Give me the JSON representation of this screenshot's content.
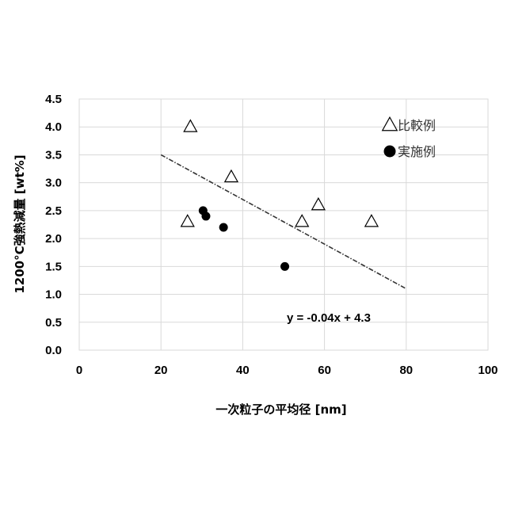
{
  "chart_data": {
    "type": "scatter",
    "xlabel": "一次粒子の平均径 [nm]",
    "ylabel": "1200°C強熱減量 [wt%]",
    "xlim": [
      0,
      100
    ],
    "ylim": [
      0,
      4.5
    ],
    "x_ticks": [
      "0",
      "20",
      "40",
      "60",
      "80",
      "100"
    ],
    "y_ticks": [
      "0.0",
      "0.5",
      "1.0",
      "1.5",
      "2.0",
      "2.5",
      "3.0",
      "3.5",
      "4.0",
      "4.5"
    ],
    "x_tick_values": [
      0,
      20,
      40,
      60,
      80,
      100
    ],
    "y_tick_values": [
      0,
      0.5,
      1.0,
      1.5,
      2.0,
      2.5,
      3.0,
      3.5,
      4.0,
      4.5
    ],
    "grid": true,
    "legend_position": "top-right",
    "series": [
      {
        "name": "比較例",
        "marker": "open-triangle",
        "color": "#000000",
        "points": [
          {
            "x": 26.5,
            "y": 2.3
          },
          {
            "x": 27.2,
            "y": 4.0
          },
          {
            "x": 37.2,
            "y": 3.1
          },
          {
            "x": 54.5,
            "y": 2.3
          },
          {
            "x": 58.5,
            "y": 2.6
          },
          {
            "x": 71.5,
            "y": 2.3
          }
        ]
      },
      {
        "name": "実施例",
        "marker": "filled-circle",
        "color": "#000000",
        "points": [
          {
            "x": 30.3,
            "y": 2.5
          },
          {
            "x": 31.0,
            "y": 2.4
          },
          {
            "x": 35.3,
            "y": 2.2
          },
          {
            "x": 50.3,
            "y": 1.5
          }
        ]
      }
    ],
    "trendline": {
      "equation": "y = -0.04x + 4.3",
      "x_range": [
        20,
        80
      ],
      "slope": -0.04,
      "intercept": 4.3,
      "style": "dash-dot"
    }
  }
}
